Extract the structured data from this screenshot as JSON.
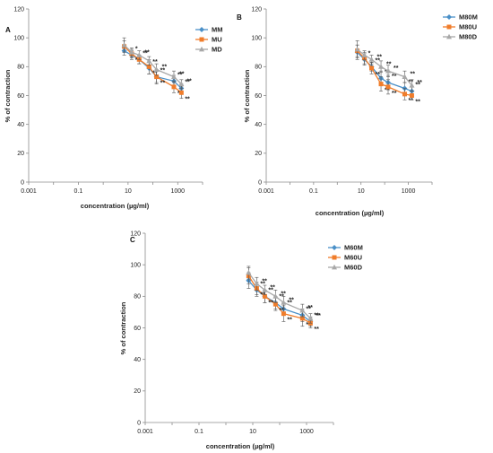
{
  "colors": {
    "series1": "#4a90c8",
    "series2": "#f07d2b",
    "series3": "#a8a8a8",
    "axis": "#8c8c8c"
  },
  "chart_data": [
    {
      "type": "line",
      "panel_label": "A",
      "xlabel": "concentration (µg/ml)",
      "ylabel": "% of contraction",
      "x_scale": "log",
      "xlim": [
        0.001,
        10000
      ],
      "ylim": [
        0,
        120
      ],
      "x_tick_labels": [
        "0.001",
        "0.1",
        "10",
        "1000"
      ],
      "x_tick_values": [
        0.001,
        0.1,
        10,
        1000
      ],
      "y_ticks": [
        0,
        20,
        40,
        60,
        80,
        100,
        120
      ],
      "legend_position": "top-right",
      "x": [
        7,
        14,
        28,
        70,
        140,
        700,
        1400
      ],
      "series": [
        {
          "name": "MM",
          "marker": "diamond",
          "values": [
            91,
            88,
            85,
            79,
            73,
            70,
            65
          ],
          "errors": [
            3,
            3,
            3,
            4,
            4,
            4,
            3
          ],
          "sig": [
            "",
            "*",
            "**",
            "**",
            "**",
            "**",
            "**"
          ]
        },
        {
          "name": "MU",
          "marker": "square",
          "values": [
            94,
            89,
            85,
            80,
            73,
            66,
            62
          ],
          "errors": [
            4,
            3,
            3,
            5,
            5,
            4,
            4
          ],
          "sig": [
            "",
            "**",
            "",
            "**",
            "**",
            "**",
            "**"
          ]
        },
        {
          "name": "MD",
          "marker": "triangle",
          "values": [
            95,
            90,
            88,
            84,
            78,
            73,
            68
          ],
          "errors": [
            5,
            3,
            3,
            3,
            4,
            4,
            3
          ],
          "sig": [
            "",
            "",
            "**",
            "",
            "**",
            "**",
            "**"
          ]
        }
      ]
    },
    {
      "type": "line",
      "panel_label": "B",
      "xlabel": "concentration (µg/ml)",
      "ylabel": "% of contraction",
      "x_scale": "log",
      "xlim": [
        0.001,
        10000
      ],
      "ylim": [
        0,
        120
      ],
      "x_tick_labels": [
        "0.001",
        "0.1",
        "10",
        "1000"
      ],
      "x_tick_values": [
        0.001,
        0.1,
        10,
        1000
      ],
      "y_ticks": [
        0,
        20,
        40,
        60,
        80,
        100,
        120
      ],
      "legend_position": "top-right",
      "x": [
        7,
        14,
        28,
        70,
        140,
        700,
        1400
      ],
      "series": [
        {
          "name": "M80M",
          "marker": "diamond",
          "values": [
            90,
            85,
            80,
            72,
            69,
            65,
            63
          ],
          "errors": [
            5,
            4,
            3,
            5,
            5,
            4,
            3
          ],
          "sig": [
            "",
            "*",
            "**",
            "**",
            "**",
            "**",
            "**"
          ]
        },
        {
          "name": "M80U",
          "marker": "square",
          "values": [
            91,
            86,
            79,
            68,
            66,
            61,
            60
          ],
          "errors": [
            4,
            4,
            4,
            5,
            5,
            4,
            3
          ],
          "sig": [
            "",
            "",
            "**",
            "**",
            "**",
            "**",
            "**"
          ]
        },
        {
          "name": "M80D",
          "marker": "triangle",
          "values": [
            92,
            88,
            85,
            80,
            77,
            73,
            67
          ],
          "errors": [
            6,
            3,
            3,
            4,
            4,
            4,
            4
          ],
          "sig": [
            "",
            "",
            "**",
            "**",
            "**",
            "**",
            "**"
          ]
        }
      ]
    },
    {
      "type": "line",
      "panel_label": "C",
      "xlabel": "concentration (µg/ml)",
      "ylabel": "% of contraction",
      "x_scale": "log",
      "xlim": [
        0.001,
        10000
      ],
      "ylim": [
        0,
        120
      ],
      "x_tick_labels": [
        "0.001",
        "0.1",
        "10",
        "1000"
      ],
      "x_tick_values": [
        0.001,
        0.1,
        10,
        1000
      ],
      "y_ticks": [
        0,
        20,
        40,
        60,
        80,
        100,
        120
      ],
      "legend_position": "top-right",
      "x": [
        7,
        14,
        28,
        70,
        140,
        700,
        1400
      ],
      "series": [
        {
          "name": "M60M",
          "marker": "diamond",
          "values": [
            90,
            84,
            80,
            76,
            72,
            68,
            64
          ],
          "errors": [
            5,
            4,
            4,
            4,
            4,
            4,
            3
          ],
          "sig": [
            "",
            "**",
            "**",
            "**",
            "**",
            "**",
            "**"
          ]
        },
        {
          "name": "M60U",
          "marker": "square",
          "values": [
            93,
            85,
            80,
            75,
            69,
            66,
            63
          ],
          "errors": [
            5,
            4,
            4,
            4,
            5,
            5,
            3
          ],
          "sig": [
            "",
            "**",
            "**",
            "**",
            "**",
            "**",
            "**"
          ]
        },
        {
          "name": "M60D",
          "marker": "triangle",
          "values": [
            95,
            88,
            84,
            80,
            76,
            71,
            66
          ],
          "errors": [
            4,
            4,
            3,
            4,
            4,
            4,
            3
          ],
          "sig": [
            "",
            "**",
            "**",
            "**",
            "**",
            "**",
            "**"
          ]
        }
      ]
    }
  ]
}
